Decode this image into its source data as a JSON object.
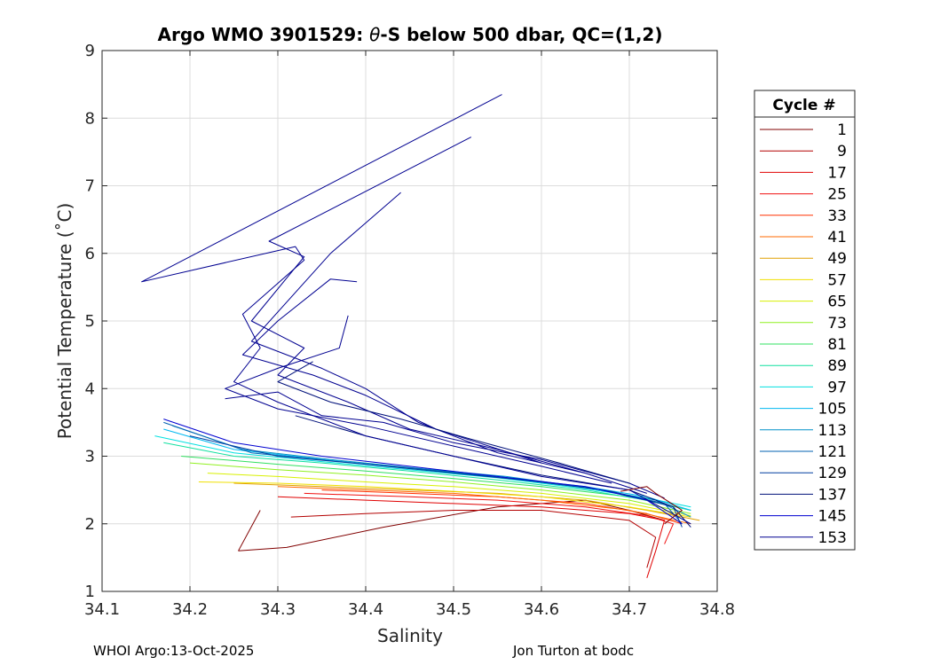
{
  "chart_data": {
    "type": "line",
    "title": "Argo WMO 3901529: θ-S below 500 dbar,  QC=(1,2)",
    "title_parts": {
      "prefix": "Argo WMO 3901529: ",
      "symbol": "θ",
      "suffix": "-S below 500 dbar,  QC=(1,2)"
    },
    "xlabel": "Salinity",
    "ylabel": "Potential Temperature (˚C)",
    "xlim": [
      34.1,
      34.8
    ],
    "ylim": [
      1,
      9
    ],
    "xticks": [
      "34.1",
      "34.2",
      "34.3",
      "34.4",
      "34.5",
      "34.6",
      "34.7",
      "34.8"
    ],
    "yticks": [
      "1",
      "2",
      "3",
      "4",
      "5",
      "6",
      "7",
      "8",
      "9"
    ],
    "grid": true,
    "legend": {
      "title": "Cycle #",
      "placement": "outside-right",
      "entries": [
        {
          "label": "1",
          "color": "#800000"
        },
        {
          "label": "9",
          "color": "#b30000"
        },
        {
          "label": "17",
          "color": "#e00000"
        },
        {
          "label": "25",
          "color": "#f01010"
        },
        {
          "label": "33",
          "color": "#ff3000"
        },
        {
          "label": "41",
          "color": "#ff6a00"
        },
        {
          "label": "49",
          "color": "#e0a000"
        },
        {
          "label": "57",
          "color": "#f0e000"
        },
        {
          "label": "65",
          "color": "#d8f000"
        },
        {
          "label": "73",
          "color": "#90f020"
        },
        {
          "label": "81",
          "color": "#30e060"
        },
        {
          "label": "89",
          "color": "#10e0a0"
        },
        {
          "label": "97",
          "color": "#00e0e0"
        },
        {
          "label": "105",
          "color": "#00b8f0"
        },
        {
          "label": "113",
          "color": "#0090c8"
        },
        {
          "label": "121",
          "color": "#0060b0"
        },
        {
          "label": "129",
          "color": "#003da0"
        },
        {
          "label": "137",
          "color": "#00107a"
        },
        {
          "label": "145",
          "color": "#0000d0"
        },
        {
          "label": "153",
          "color": "#000090"
        }
      ]
    },
    "profiles": [
      {
        "cycle": "1",
        "points": [
          [
            34.255,
            1.6
          ],
          [
            34.31,
            1.65
          ],
          [
            34.42,
            1.95
          ],
          [
            34.55,
            2.25
          ],
          [
            34.65,
            2.35
          ],
          [
            34.7,
            2.2
          ],
          [
            34.74,
            2.05
          ]
        ]
      },
      {
        "cycle": "1",
        "points": [
          [
            34.255,
            1.6
          ],
          [
            34.28,
            2.2
          ]
        ]
      },
      {
        "cycle": "9",
        "points": [
          [
            34.315,
            2.1
          ],
          [
            34.4,
            2.15
          ],
          [
            34.5,
            2.2
          ],
          [
            34.6,
            2.2
          ],
          [
            34.7,
            2.05
          ],
          [
            34.73,
            1.8
          ],
          [
            34.72,
            1.35
          ]
        ]
      },
      {
        "cycle": "17",
        "points": [
          [
            34.3,
            2.4
          ],
          [
            34.4,
            2.35
          ],
          [
            34.5,
            2.3
          ],
          [
            34.6,
            2.25
          ],
          [
            34.7,
            2.15
          ],
          [
            34.74,
            2.05
          ],
          [
            34.73,
            1.6
          ],
          [
            34.72,
            1.2
          ]
        ]
      },
      {
        "cycle": "25",
        "points": [
          [
            34.33,
            2.45
          ],
          [
            34.45,
            2.4
          ],
          [
            34.55,
            2.35
          ],
          [
            34.65,
            2.25
          ],
          [
            34.72,
            2.12
          ],
          [
            34.75,
            2.0
          ],
          [
            34.74,
            1.7
          ]
        ]
      },
      {
        "cycle": "33",
        "points": [
          [
            34.35,
            2.5
          ],
          [
            34.45,
            2.45
          ],
          [
            34.55,
            2.4
          ],
          [
            34.65,
            2.3
          ],
          [
            34.72,
            2.15
          ],
          [
            34.76,
            2.0
          ]
        ]
      },
      {
        "cycle": "41",
        "points": [
          [
            34.3,
            2.55
          ],
          [
            34.4,
            2.5
          ],
          [
            34.5,
            2.45
          ],
          [
            34.6,
            2.35
          ],
          [
            34.7,
            2.2
          ],
          [
            34.77,
            2.0
          ]
        ]
      },
      {
        "cycle": "49",
        "points": [
          [
            34.25,
            2.6
          ],
          [
            34.35,
            2.55
          ],
          [
            34.45,
            2.5
          ],
          [
            34.55,
            2.45
          ],
          [
            34.65,
            2.35
          ],
          [
            34.72,
            2.2
          ],
          [
            34.78,
            2.05
          ]
        ]
      },
      {
        "cycle": "57",
        "points": [
          [
            34.21,
            2.62
          ],
          [
            34.3,
            2.6
          ],
          [
            34.4,
            2.55
          ],
          [
            34.5,
            2.48
          ],
          [
            34.6,
            2.4
          ],
          [
            34.7,
            2.25
          ],
          [
            34.77,
            2.1
          ]
        ]
      },
      {
        "cycle": "65",
        "points": [
          [
            34.22,
            2.75
          ],
          [
            34.3,
            2.7
          ],
          [
            34.4,
            2.62
          ],
          [
            34.5,
            2.55
          ],
          [
            34.6,
            2.45
          ],
          [
            34.7,
            2.3
          ],
          [
            34.77,
            2.12
          ]
        ]
      },
      {
        "cycle": "73",
        "points": [
          [
            34.2,
            2.9
          ],
          [
            34.3,
            2.8
          ],
          [
            34.4,
            2.72
          ],
          [
            34.5,
            2.62
          ],
          [
            34.6,
            2.5
          ],
          [
            34.7,
            2.35
          ],
          [
            34.77,
            2.15
          ]
        ]
      },
      {
        "cycle": "81",
        "points": [
          [
            34.19,
            3.0
          ],
          [
            34.3,
            2.88
          ],
          [
            34.4,
            2.78
          ],
          [
            34.5,
            2.67
          ],
          [
            34.6,
            2.55
          ],
          [
            34.7,
            2.4
          ],
          [
            34.77,
            2.2
          ]
        ]
      },
      {
        "cycle": "89",
        "points": [
          [
            34.17,
            3.2
          ],
          [
            34.25,
            3.0
          ],
          [
            34.35,
            2.9
          ],
          [
            34.45,
            2.78
          ],
          [
            34.55,
            2.65
          ],
          [
            34.65,
            2.5
          ],
          [
            34.72,
            2.35
          ],
          [
            34.77,
            2.2
          ]
        ]
      },
      {
        "cycle": "97",
        "points": [
          [
            34.16,
            3.3
          ],
          [
            34.25,
            3.05
          ],
          [
            34.35,
            2.92
          ],
          [
            34.45,
            2.8
          ],
          [
            34.55,
            2.68
          ],
          [
            34.65,
            2.52
          ],
          [
            34.72,
            2.38
          ],
          [
            34.77,
            2.25
          ]
        ]
      },
      {
        "cycle": "105",
        "points": [
          [
            34.17,
            3.4
          ],
          [
            34.25,
            3.1
          ],
          [
            34.35,
            2.95
          ],
          [
            34.45,
            2.82
          ],
          [
            34.55,
            2.7
          ],
          [
            34.65,
            2.55
          ],
          [
            34.72,
            2.4
          ],
          [
            34.77,
            2.2
          ]
        ]
      },
      {
        "cycle": "113",
        "points": [
          [
            34.18,
            3.45
          ],
          [
            34.26,
            3.1
          ],
          [
            34.36,
            2.95
          ],
          [
            34.46,
            2.82
          ],
          [
            34.56,
            2.7
          ],
          [
            34.66,
            2.52
          ],
          [
            34.73,
            2.35
          ],
          [
            34.77,
            2.1
          ]
        ]
      },
      {
        "cycle": "121",
        "points": [
          [
            34.17,
            3.5
          ],
          [
            34.27,
            3.05
          ],
          [
            34.37,
            2.92
          ],
          [
            34.47,
            2.8
          ],
          [
            34.57,
            2.66
          ],
          [
            34.67,
            2.5
          ],
          [
            34.74,
            2.3
          ],
          [
            34.76,
            2.0
          ]
        ]
      },
      {
        "cycle": "129",
        "points": [
          [
            34.2,
            3.3
          ],
          [
            34.3,
            3.0
          ],
          [
            34.4,
            2.88
          ],
          [
            34.5,
            2.75
          ],
          [
            34.6,
            2.62
          ],
          [
            34.68,
            2.48
          ],
          [
            34.75,
            2.25
          ],
          [
            34.76,
            1.95
          ]
        ]
      },
      {
        "cycle": "137",
        "points": [
          [
            34.32,
            3.6
          ],
          [
            34.4,
            3.3
          ],
          [
            34.5,
            3.0
          ],
          [
            34.6,
            2.72
          ],
          [
            34.7,
            2.5
          ],
          [
            34.75,
            2.25
          ],
          [
            34.77,
            1.95
          ]
        ]
      },
      {
        "cycle": "145",
        "points": [
          [
            34.17,
            3.55
          ],
          [
            34.25,
            3.2
          ],
          [
            34.35,
            3.0
          ],
          [
            34.45,
            2.85
          ],
          [
            34.55,
            2.7
          ],
          [
            34.65,
            2.55
          ],
          [
            34.72,
            2.35
          ],
          [
            34.76,
            2.0
          ]
        ]
      },
      {
        "cycle": "153",
        "points": [
          [
            34.555,
            8.35
          ],
          [
            34.145,
            5.58
          ],
          [
            34.32,
            6.1
          ],
          [
            34.33,
            5.9
          ],
          [
            34.26,
            5.1
          ],
          [
            34.28,
            4.6
          ],
          [
            34.25,
            4.1
          ],
          [
            34.3,
            3.8
          ],
          [
            34.4,
            3.3
          ],
          [
            34.5,
            3.0
          ],
          [
            34.6,
            2.7
          ],
          [
            34.7,
            2.5
          ],
          [
            34.77,
            2.0
          ]
        ]
      },
      {
        "cycle": "153",
        "points": [
          [
            34.52,
            7.72
          ],
          [
            34.29,
            6.18
          ],
          [
            34.33,
            5.95
          ],
          [
            34.27,
            5.0
          ],
          [
            34.33,
            4.6
          ],
          [
            34.3,
            4.2
          ],
          [
            34.38,
            3.8
          ],
          [
            34.45,
            3.4
          ],
          [
            34.55,
            3.1
          ],
          [
            34.65,
            2.75
          ],
          [
            34.72,
            2.45
          ]
        ]
      },
      {
        "cycle": "153",
        "points": [
          [
            34.44,
            6.9
          ],
          [
            34.36,
            6.0
          ],
          [
            34.27,
            4.7
          ],
          [
            34.35,
            4.3
          ],
          [
            34.4,
            4.0
          ],
          [
            34.46,
            3.5
          ],
          [
            34.55,
            3.05
          ],
          [
            34.65,
            2.75
          ]
        ]
      },
      {
        "cycle": "153",
        "points": [
          [
            34.39,
            5.58
          ],
          [
            34.36,
            5.62
          ],
          [
            34.3,
            5.0
          ],
          [
            34.26,
            4.5
          ],
          [
            34.34,
            4.2
          ],
          [
            34.4,
            3.9
          ],
          [
            34.48,
            3.4
          ],
          [
            34.6,
            2.9
          ]
        ]
      },
      {
        "cycle": "153",
        "points": [
          [
            34.38,
            5.08
          ],
          [
            34.37,
            4.6
          ],
          [
            34.3,
            4.3
          ],
          [
            34.24,
            4.0
          ],
          [
            34.3,
            3.7
          ],
          [
            34.4,
            3.45
          ],
          [
            34.5,
            3.15
          ],
          [
            34.6,
            2.85
          ],
          [
            34.68,
            2.6
          ]
        ]
      },
      {
        "cycle": "153",
        "points": [
          [
            34.24,
            3.85
          ],
          [
            34.3,
            3.95
          ],
          [
            34.35,
            3.6
          ],
          [
            34.42,
            3.5
          ],
          [
            34.5,
            3.2
          ],
          [
            34.6,
            2.95
          ],
          [
            34.7,
            2.6
          ],
          [
            34.74,
            2.38
          ]
        ]
      },
      {
        "cycle": "137",
        "points": [
          [
            34.34,
            4.4
          ],
          [
            34.3,
            4.1
          ],
          [
            34.36,
            3.8
          ],
          [
            34.44,
            3.55
          ],
          [
            34.52,
            3.25
          ],
          [
            34.62,
            2.9
          ],
          [
            34.7,
            2.6
          ]
        ]
      },
      {
        "cycle": "1",
        "points": [
          [
            34.69,
            2.48
          ],
          [
            34.72,
            2.55
          ],
          [
            34.73,
            2.45
          ],
          [
            34.76,
            2.2
          ],
          [
            34.74,
            2.0
          ]
        ]
      }
    ]
  },
  "footer": {
    "left": "WHOI Argo:13-Oct-2025",
    "right": "Jon Turton at bodc"
  }
}
